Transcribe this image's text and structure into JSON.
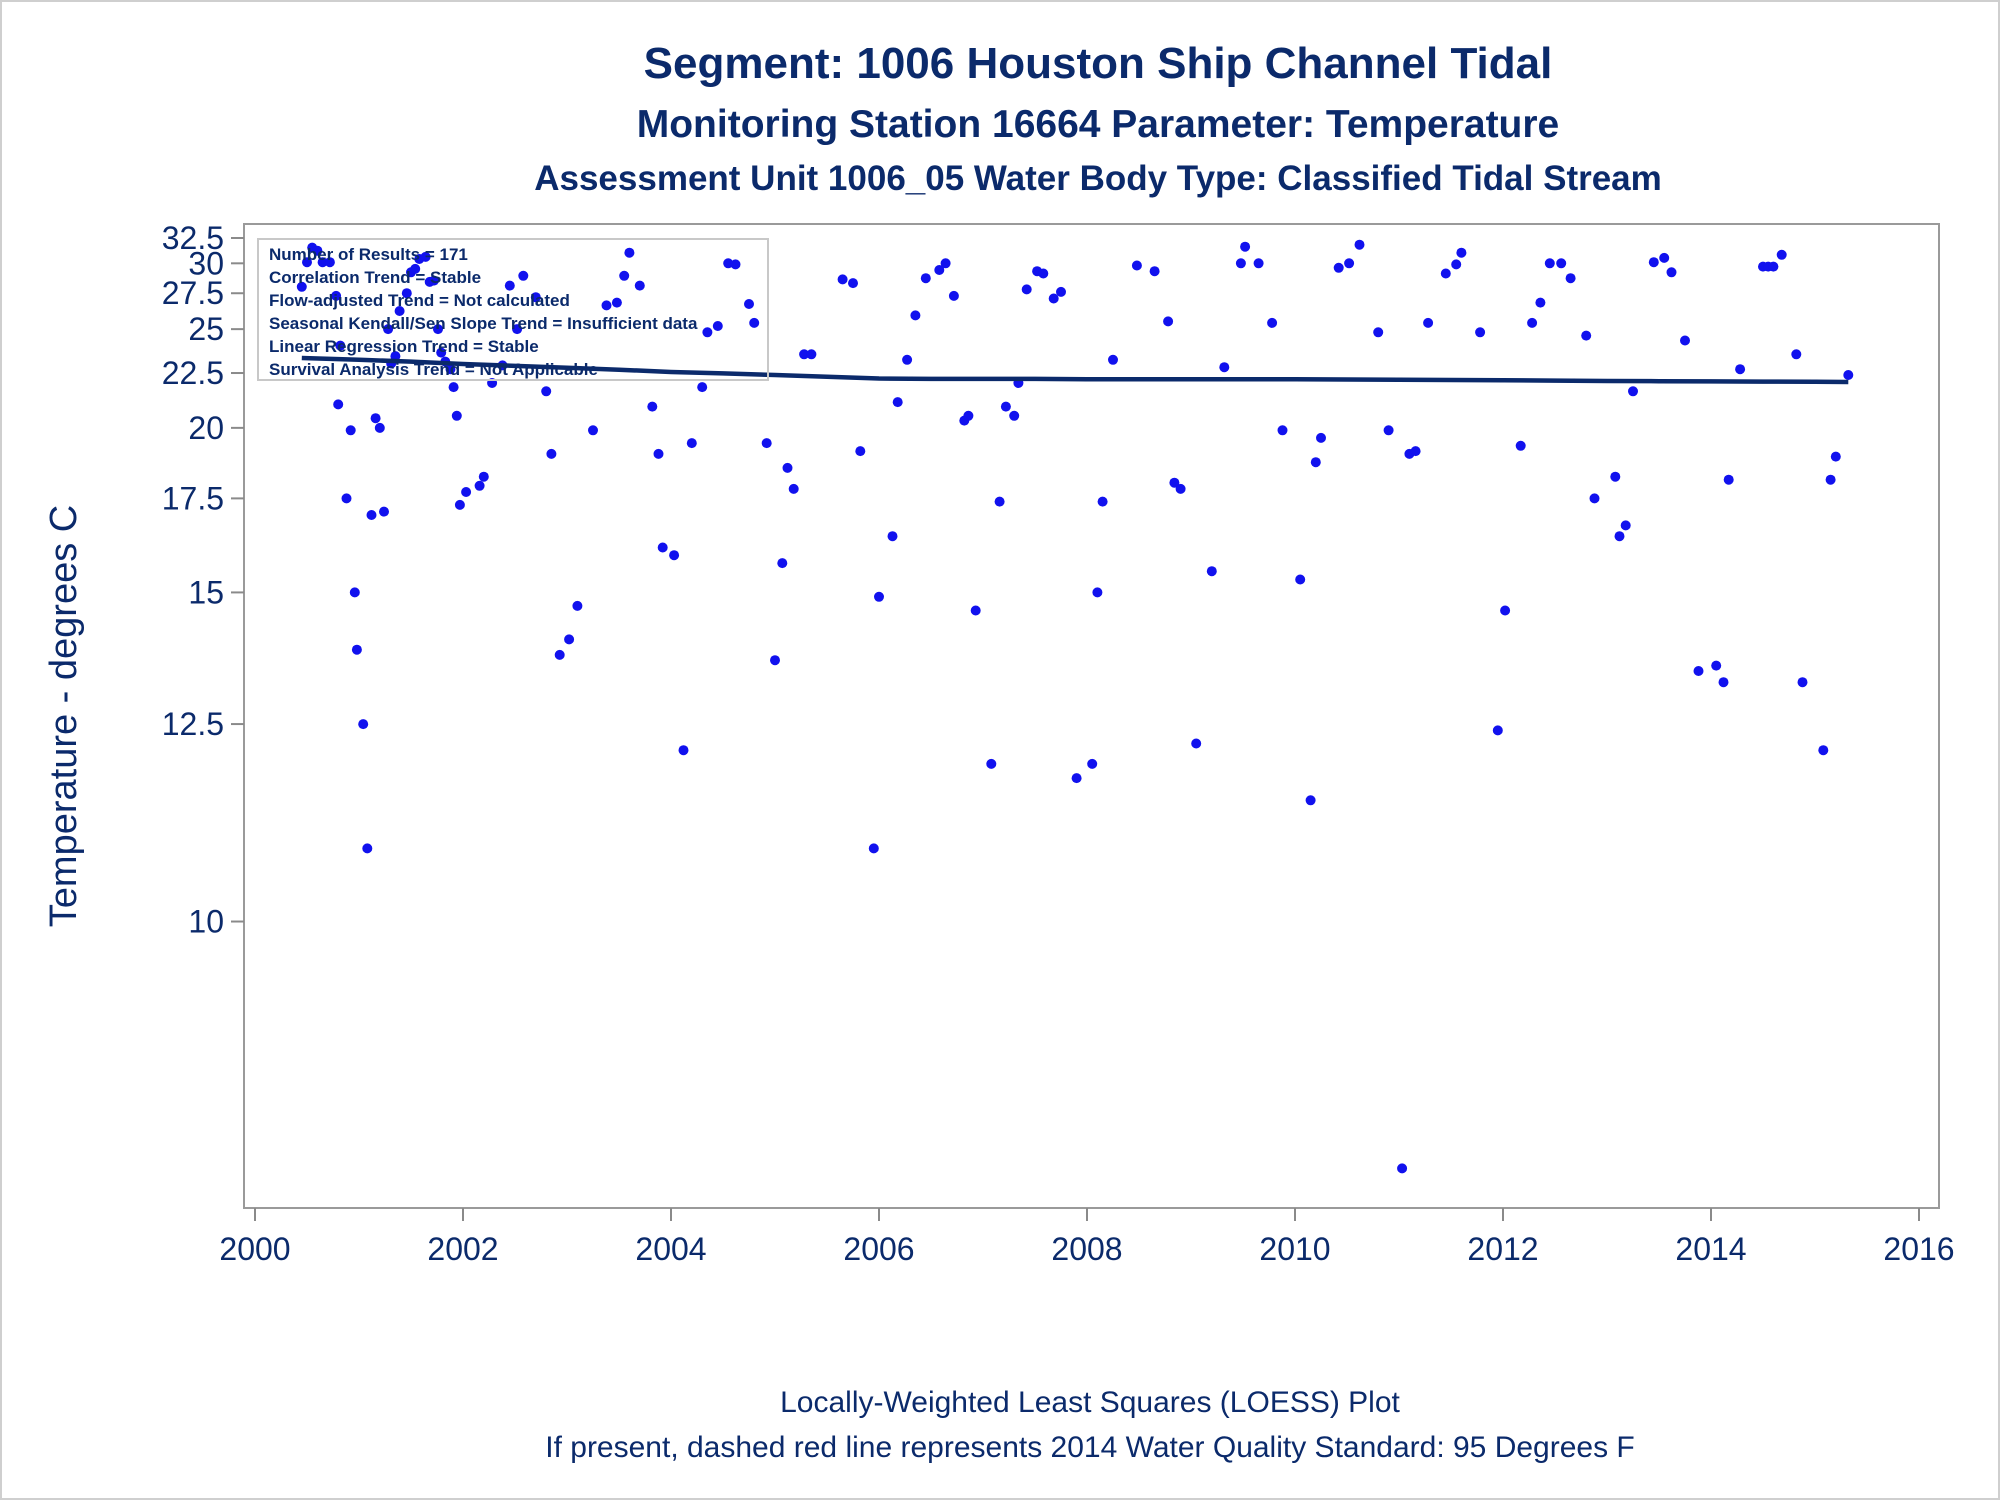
{
  "chart_data": {
    "type": "scatter",
    "title": "Segment: 1006  Houston Ship Channel Tidal",
    "subtitle": "Monitoring Station 16664 Parameter: Temperature",
    "subtitle2": "Assessment Unit 1006_05   Water Body Type: Classified Tidal Stream",
    "xlabel": "",
    "ylabel": "Temperature - degrees C",
    "xlim": [
      2000,
      2016
    ],
    "ylim": [
      7.8,
      32.5
    ],
    "y_scale": "reciprocal",
    "x_ticks": [
      "2000",
      "2002",
      "2004",
      "2006",
      "2008",
      "2010",
      "2012",
      "2014",
      "2016"
    ],
    "y_ticks": [
      "10",
      "12.5",
      "15",
      "17.5",
      "20",
      "22.5",
      "25",
      "27.5",
      "30",
      "32.5"
    ],
    "colors": {
      "points": "#1111ee",
      "trend": "#0b2a6b",
      "text": "#0b2a6b"
    },
    "legend_placement": "top-left",
    "stats_box": [
      "Number of Results = 171",
      "Correlation Trend = Stable",
      "Flow-adjusted Trend = Not calculated",
      "Seasonal Kendall/Sen Slope Trend = Insufficient data",
      "Linear Regression Trend = Stable",
      "Survival Analysis Trend = Not Applicable"
    ],
    "footnotes": [
      "Locally-Weighted Least Squares (LOESS) Plot",
      "If present, dashed red line represents 2014 Water Quality Standard: 95   Degrees F"
    ],
    "series": [
      {
        "type": "scatter",
        "points": [
          [
            2000.45,
            28.0
          ],
          [
            2000.5,
            30.1
          ],
          [
            2000.55,
            31.5
          ],
          [
            2000.6,
            31.2
          ],
          [
            2000.65,
            30.1
          ],
          [
            2000.72,
            30.1
          ],
          [
            2000.78,
            27.3
          ],
          [
            2000.8,
            21.0
          ],
          [
            2000.82,
            24.0
          ],
          [
            2000.88,
            17.5
          ],
          [
            2000.92,
            19.9
          ],
          [
            2000.96,
            15.0
          ],
          [
            2000.98,
            13.8
          ],
          [
            2001.04,
            12.5
          ],
          [
            2001.08,
            10.8
          ],
          [
            2001.12,
            17.0
          ],
          [
            2001.16,
            20.4
          ],
          [
            2001.2,
            20.0
          ],
          [
            2001.24,
            17.1
          ],
          [
            2001.28,
            25.0
          ],
          [
            2001.31,
            23.0
          ],
          [
            2001.35,
            23.4
          ],
          [
            2001.39,
            26.2
          ],
          [
            2001.46,
            27.5
          ],
          [
            2001.5,
            29.2
          ],
          [
            2001.54,
            29.5
          ],
          [
            2001.58,
            30.4
          ],
          [
            2001.64,
            30.6
          ],
          [
            2001.68,
            28.4
          ],
          [
            2001.72,
            28.5
          ],
          [
            2001.76,
            25.0
          ],
          [
            2001.79,
            23.6
          ],
          [
            2001.83,
            23.1
          ],
          [
            2001.88,
            22.7
          ],
          [
            2001.91,
            21.8
          ],
          [
            2001.94,
            20.5
          ],
          [
            2001.97,
            17.3
          ],
          [
            2002.03,
            17.7
          ],
          [
            2002.16,
            17.9
          ],
          [
            2002.2,
            18.2
          ],
          [
            2002.28,
            22.0
          ],
          [
            2002.38,
            22.9
          ],
          [
            2002.45,
            28.1
          ],
          [
            2002.52,
            25.0
          ],
          [
            2002.58,
            28.9
          ],
          [
            2002.7,
            27.2
          ],
          [
            2002.8,
            21.6
          ],
          [
            2002.85,
            19.0
          ],
          [
            2002.93,
            13.7
          ],
          [
            2003.02,
            14.0
          ],
          [
            2003.1,
            14.7
          ],
          [
            2003.25,
            19.9
          ],
          [
            2003.38,
            26.6
          ],
          [
            2003.48,
            26.8
          ],
          [
            2003.55,
            28.9
          ],
          [
            2003.6,
            31.0
          ],
          [
            2003.7,
            28.1
          ],
          [
            2003.82,
            20.9
          ],
          [
            2003.88,
            19.0
          ],
          [
            2003.92,
            16.1
          ],
          [
            2004.03,
            15.9
          ],
          [
            2004.12,
            12.1
          ],
          [
            2004.2,
            19.4
          ],
          [
            2004.3,
            21.8
          ],
          [
            2004.35,
            24.8
          ],
          [
            2004.45,
            25.2
          ],
          [
            2004.55,
            30.0
          ],
          [
            2004.62,
            29.9
          ],
          [
            2004.75,
            26.7
          ],
          [
            2004.8,
            25.4
          ],
          [
            2004.92,
            19.4
          ],
          [
            2005.0,
            13.6
          ],
          [
            2005.07,
            15.7
          ],
          [
            2005.12,
            18.5
          ],
          [
            2005.18,
            17.8
          ],
          [
            2005.28,
            23.5
          ],
          [
            2005.35,
            23.5
          ],
          [
            2005.65,
            28.6
          ],
          [
            2005.75,
            28.3
          ],
          [
            2005.82,
            19.1
          ],
          [
            2005.95,
            10.8
          ],
          [
            2006.0,
            14.9
          ],
          [
            2006.13,
            16.4
          ],
          [
            2006.18,
            21.1
          ],
          [
            2006.27,
            23.2
          ],
          [
            2006.35,
            25.9
          ],
          [
            2006.45,
            28.7
          ],
          [
            2006.58,
            29.4
          ],
          [
            2006.64,
            30.0
          ],
          [
            2006.72,
            27.3
          ],
          [
            2006.82,
            20.3
          ],
          [
            2006.86,
            20.5
          ],
          [
            2006.93,
            14.6
          ],
          [
            2007.08,
            11.9
          ],
          [
            2007.16,
            17.4
          ],
          [
            2007.22,
            20.9
          ],
          [
            2007.3,
            20.5
          ],
          [
            2007.34,
            22.0
          ],
          [
            2007.42,
            27.8
          ],
          [
            2007.52,
            29.3
          ],
          [
            2007.58,
            29.1
          ],
          [
            2007.68,
            27.1
          ],
          [
            2007.75,
            27.6
          ],
          [
            2007.9,
            11.7
          ],
          [
            2008.05,
            11.9
          ],
          [
            2008.1,
            15.0
          ],
          [
            2008.15,
            17.4
          ],
          [
            2008.25,
            23.2
          ],
          [
            2008.48,
            29.8
          ],
          [
            2008.65,
            29.3
          ],
          [
            2008.78,
            25.5
          ],
          [
            2008.84,
            18.0
          ],
          [
            2008.9,
            17.8
          ],
          [
            2009.05,
            12.2
          ],
          [
            2009.2,
            15.5
          ],
          [
            2009.32,
            22.8
          ],
          [
            2009.48,
            30.0
          ],
          [
            2009.52,
            31.6
          ],
          [
            2009.65,
            30.0
          ],
          [
            2009.78,
            25.4
          ],
          [
            2009.88,
            19.9
          ],
          [
            2010.05,
            15.3
          ],
          [
            2010.15,
            11.4
          ],
          [
            2010.2,
            18.7
          ],
          [
            2010.25,
            19.6
          ],
          [
            2010.42,
            29.6
          ],
          [
            2010.52,
            30.0
          ],
          [
            2010.62,
            31.8
          ],
          [
            2010.8,
            24.8
          ],
          [
            2010.9,
            19.9
          ],
          [
            2011.03,
            8.0
          ],
          [
            2011.1,
            19.0
          ],
          [
            2011.16,
            19.1
          ],
          [
            2011.28,
            25.4
          ],
          [
            2011.45,
            29.1
          ],
          [
            2011.55,
            29.9
          ],
          [
            2011.6,
            31.0
          ],
          [
            2011.78,
            24.8
          ],
          [
            2011.95,
            12.4
          ],
          [
            2012.02,
            14.6
          ],
          [
            2012.17,
            19.3
          ],
          [
            2012.28,
            25.4
          ],
          [
            2012.36,
            26.8
          ],
          [
            2012.45,
            30.0
          ],
          [
            2012.56,
            30.0
          ],
          [
            2012.65,
            28.7
          ],
          [
            2012.8,
            24.6
          ],
          [
            2012.88,
            17.5
          ],
          [
            2013.08,
            18.2
          ],
          [
            2013.12,
            16.4
          ],
          [
            2013.18,
            16.7
          ],
          [
            2013.25,
            21.6
          ],
          [
            2013.45,
            30.1
          ],
          [
            2013.55,
            30.5
          ],
          [
            2013.62,
            29.2
          ],
          [
            2013.75,
            24.3
          ],
          [
            2013.88,
            13.4
          ],
          [
            2014.05,
            13.5
          ],
          [
            2014.12,
            13.2
          ],
          [
            2014.17,
            18.1
          ],
          [
            2014.28,
            22.7
          ],
          [
            2014.5,
            29.7
          ],
          [
            2014.55,
            29.7
          ],
          [
            2014.6,
            29.7
          ],
          [
            2014.68,
            30.8
          ],
          [
            2014.82,
            23.5
          ],
          [
            2014.88,
            13.2
          ],
          [
            2015.08,
            12.1
          ],
          [
            2015.15,
            18.1
          ],
          [
            2015.2,
            18.9
          ],
          [
            2015.32,
            22.4
          ]
        ]
      },
      {
        "type": "line",
        "points": [
          [
            2000.45,
            23.3
          ],
          [
            2001.0,
            23.2
          ],
          [
            2001.5,
            23.1
          ],
          [
            2002.0,
            22.97
          ],
          [
            2002.5,
            22.87
          ],
          [
            2003.0,
            22.77
          ],
          [
            2003.5,
            22.67
          ],
          [
            2004.0,
            22.55
          ],
          [
            2004.5,
            22.48
          ],
          [
            2005.0,
            22.4
          ],
          [
            2005.5,
            22.31
          ],
          [
            2006.0,
            22.22
          ],
          [
            2006.5,
            22.2
          ],
          [
            2007.0,
            22.2
          ],
          [
            2007.5,
            22.2
          ],
          [
            2008.0,
            22.18
          ],
          [
            2008.5,
            22.18
          ],
          [
            2009.0,
            22.18
          ],
          [
            2009.5,
            22.18
          ],
          [
            2010.0,
            22.18
          ],
          [
            2010.5,
            22.17
          ],
          [
            2011.0,
            22.16
          ],
          [
            2011.5,
            22.15
          ],
          [
            2012.0,
            22.14
          ],
          [
            2012.5,
            22.12
          ],
          [
            2013.0,
            22.1
          ],
          [
            2013.5,
            22.09
          ],
          [
            2014.0,
            22.08
          ],
          [
            2014.5,
            22.07
          ],
          [
            2015.0,
            22.06
          ],
          [
            2015.32,
            22.05
          ]
        ]
      }
    ]
  }
}
